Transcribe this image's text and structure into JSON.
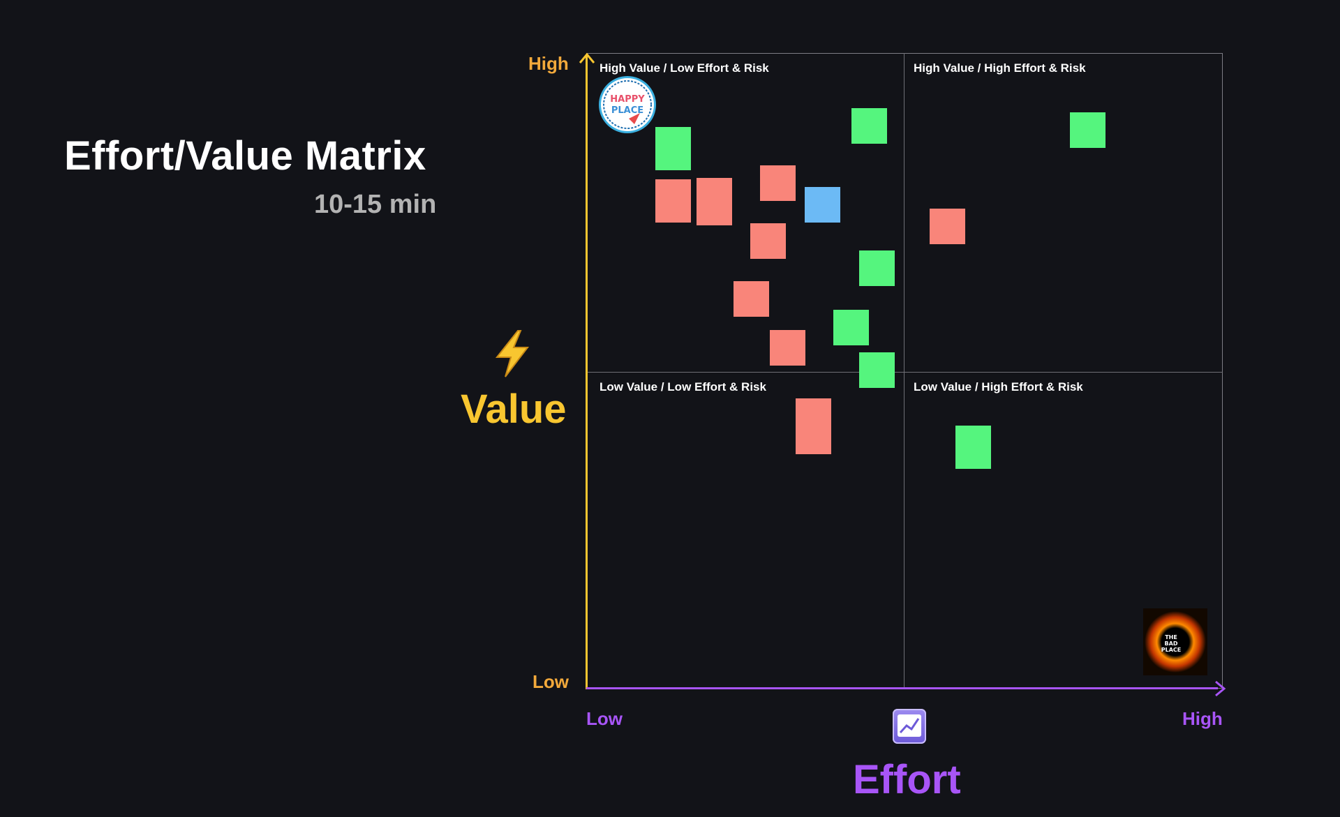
{
  "header": {
    "title": "Effort/Value Matrix",
    "duration": "10-15 min"
  },
  "axes": {
    "y": {
      "label": "Value",
      "high": "High",
      "low": "Low",
      "color": "#f8c630",
      "icon": "lightning-bolt-icon"
    },
    "x": {
      "label": "Effort",
      "high": "High",
      "low": "Low",
      "color": "#a855f7",
      "icon": "chart-increasing-icon"
    }
  },
  "quadrants": {
    "top_left": "High Value / Low Effort & Risk",
    "top_right": "High Value / High Effort & Risk",
    "bottom_left": "Low Value / Low Effort & Risk",
    "bottom_right": "Low Value / High Effort & Risk"
  },
  "badges": {
    "happy_place": {
      "text": "HAPPY PLACE",
      "icon": "happy-place-badge"
    },
    "bad_place": {
      "text": "THE BAD PLACE",
      "icon": "bad-place-badge"
    }
  },
  "colors": {
    "background": "#121318",
    "sticky_green": "#55f57e",
    "sticky_red": "#f9857a",
    "sticky_blue": "#6cbaf5"
  },
  "stickies": [
    {
      "color": "green",
      "text": ""
    },
    {
      "color": "red",
      "text": ""
    },
    {
      "color": "red",
      "text": ""
    },
    {
      "color": "red",
      "text": ""
    },
    {
      "color": "blue",
      "text": ""
    },
    {
      "color": "green",
      "text": ""
    },
    {
      "color": "red",
      "text": ""
    },
    {
      "color": "green",
      "text": ""
    },
    {
      "color": "red",
      "text": ""
    },
    {
      "color": "green",
      "text": ""
    },
    {
      "color": "red",
      "text": ""
    },
    {
      "color": "green",
      "text": ""
    },
    {
      "color": "red",
      "text": ""
    },
    {
      "color": "green",
      "text": ""
    },
    {
      "color": "red",
      "text": ""
    },
    {
      "color": "green",
      "text": ""
    }
  ]
}
